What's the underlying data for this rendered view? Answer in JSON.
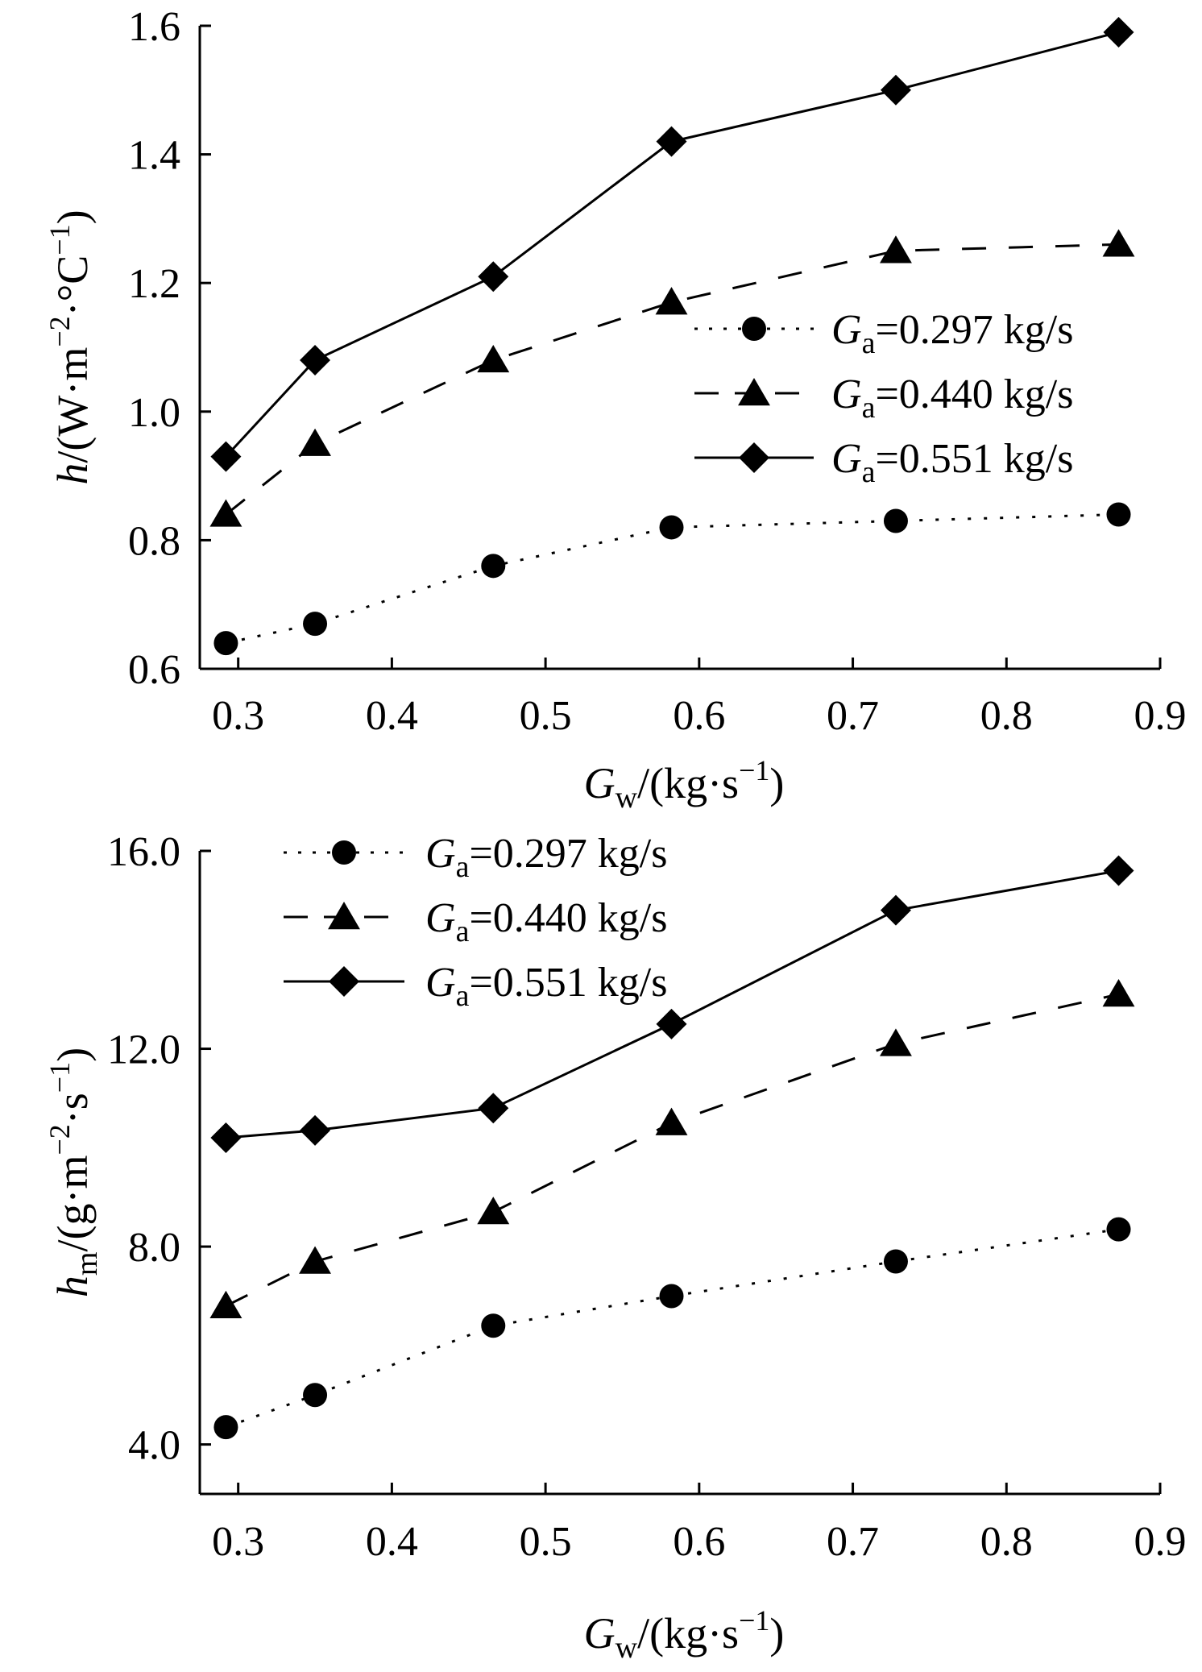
{
  "chart_data": [
    {
      "type": "line",
      "title": "",
      "xlabel": {
        "base": "G",
        "sub": "w",
        "unit": "/(kg·s",
        "sup": "−1",
        "close": ")"
      },
      "ylabel": {
        "base": "h",
        "sub": "",
        "unit": "/(W·m",
        "sup": "−2",
        "mid": "·°C",
        "sup2": "−1",
        "close": ")"
      },
      "xlim": [
        0.275,
        0.9
      ],
      "ylim": [
        0.6,
        1.6
      ],
      "x_ticks": [
        "0.3",
        "0.4",
        "0.5",
        "0.6",
        "0.7",
        "0.8",
        "0.9"
      ],
      "y_ticks": [
        "0.6",
        "0.8",
        "1.0",
        "1.2",
        "1.4",
        "1.6"
      ],
      "grid": false,
      "legend_position": "right",
      "x": [
        0.292,
        0.35,
        0.466,
        0.582,
        0.728,
        0.873
      ],
      "series": [
        {
          "name_base": "G",
          "name_sub": "a",
          "name_value": "=0.297 kg/s",
          "marker": "circle",
          "line": "dotted",
          "values": [
            0.64,
            0.67,
            0.76,
            0.82,
            0.83,
            0.84
          ]
        },
        {
          "name_base": "G",
          "name_sub": "a",
          "name_value": "=0.440 kg/s",
          "marker": "triangle",
          "line": "dashed",
          "values": [
            0.84,
            0.95,
            1.08,
            1.17,
            1.25,
            1.26
          ]
        },
        {
          "name_base": "G",
          "name_sub": "a",
          "name_value": "=0.551 kg/s",
          "marker": "diamond",
          "line": "solid",
          "values": [
            0.93,
            1.08,
            1.21,
            1.42,
            1.5,
            1.59
          ]
        }
      ]
    },
    {
      "type": "line",
      "title": "",
      "xlabel": {
        "base": "G",
        "sub": "w",
        "unit": "/(kg·s",
        "sup": "−1",
        "close": ")"
      },
      "ylabel": {
        "base": "h",
        "sub": "m",
        "unit": "/(g·m",
        "sup": "−2",
        "mid": "·s",
        "sup2": "−1",
        "close": ")"
      },
      "xlim": [
        0.275,
        0.9
      ],
      "ylim": [
        3.0,
        16.0
      ],
      "x_ticks": [
        "0.3",
        "0.4",
        "0.5",
        "0.6",
        "0.7",
        "0.8",
        "0.9"
      ],
      "y_ticks": [
        "4.0",
        "8.0",
        "12.0",
        "16.0"
      ],
      "grid": false,
      "legend_position": "top-left",
      "x": [
        0.292,
        0.35,
        0.466,
        0.582,
        0.728,
        0.873
      ],
      "series": [
        {
          "name_base": "G",
          "name_sub": "a",
          "name_value": "=0.297 kg/s",
          "marker": "circle",
          "line": "dotted",
          "values": [
            4.35,
            5.0,
            6.4,
            7.0,
            7.7,
            8.35
          ]
        },
        {
          "name_base": "G",
          "name_sub": "a",
          "name_value": "=0.440 kg/s",
          "marker": "triangle",
          "line": "dashed",
          "values": [
            6.8,
            7.7,
            8.7,
            10.5,
            12.1,
            13.1
          ]
        },
        {
          "name_base": "G",
          "name_sub": "a",
          "name_value": "=0.551 kg/s",
          "marker": "diamond",
          "line": "solid",
          "values": [
            10.2,
            10.35,
            10.8,
            12.5,
            14.8,
            15.6
          ]
        }
      ]
    }
  ]
}
